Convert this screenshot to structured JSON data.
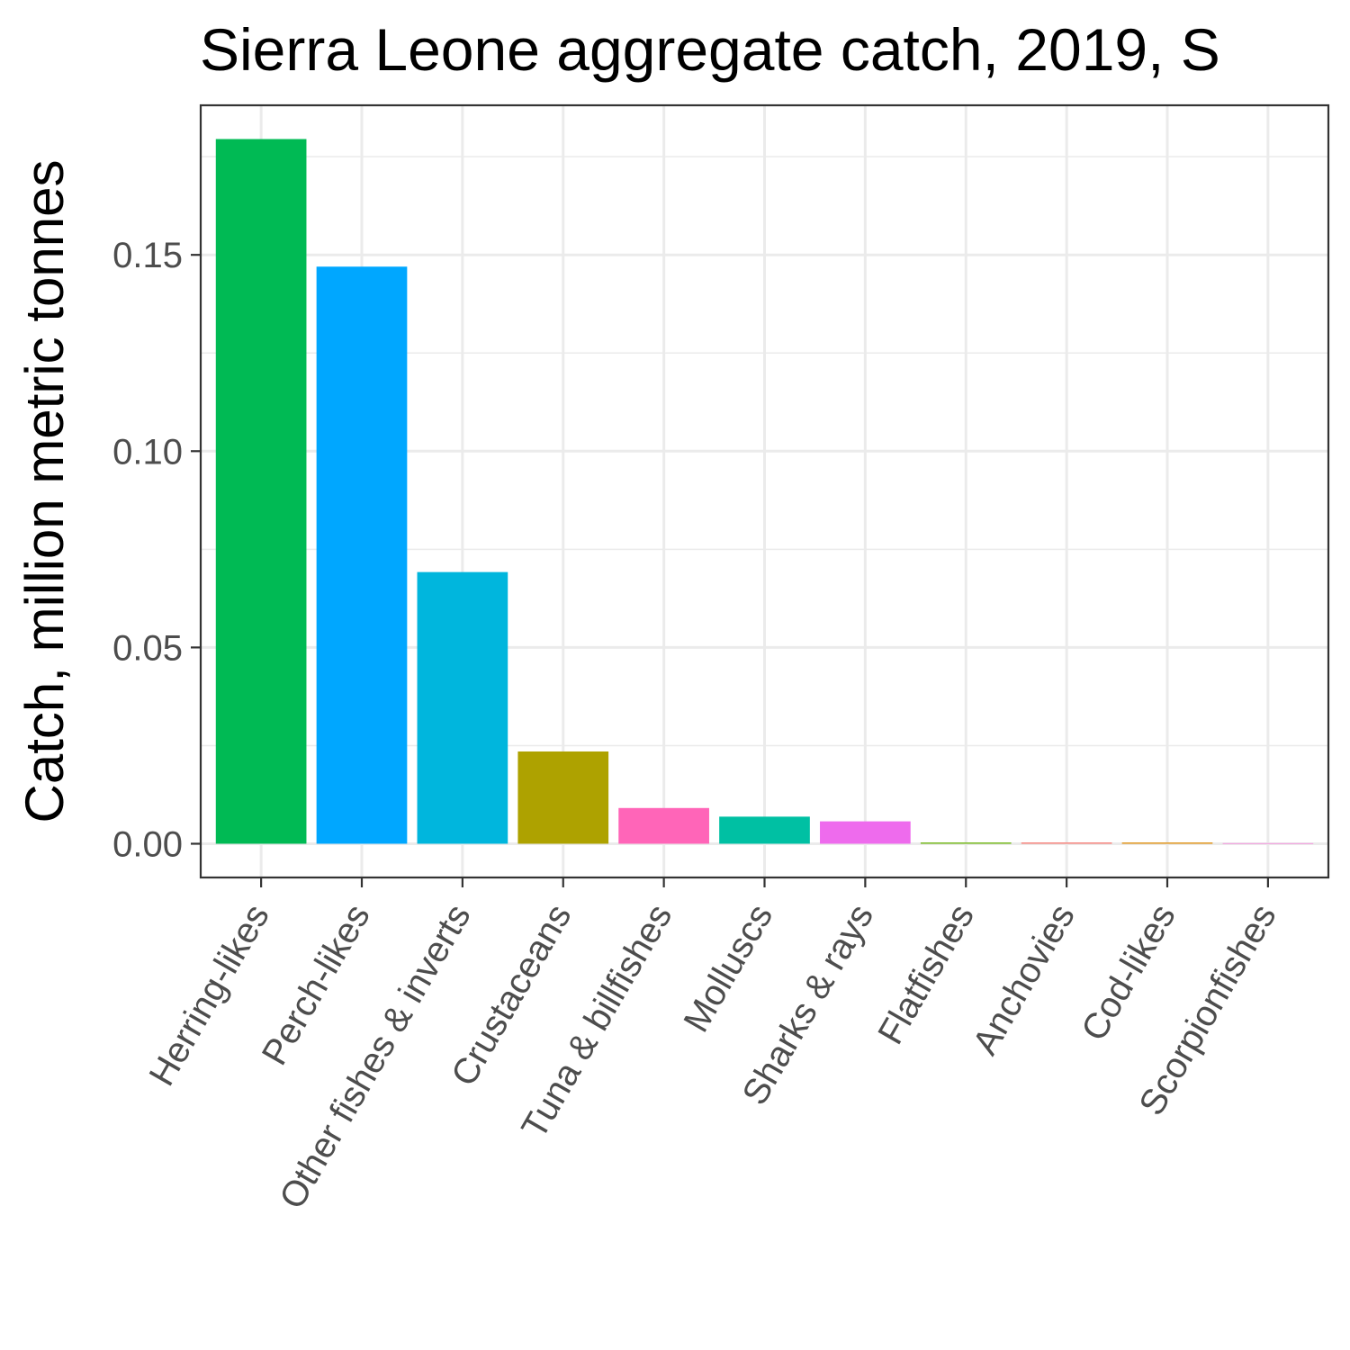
{
  "chart_data": {
    "type": "bar",
    "title": "Sierra Leone aggregate catch, 2019, S",
    "xlabel": "",
    "ylabel": "Catch, million metric tonnes",
    "categories": [
      "Herring-likes",
      "Perch-likes",
      "Other fishes & inverts",
      "Crustaceans",
      "Tuna & billfishes",
      "Molluscs",
      "Sharks & rays",
      "Flatfishes",
      "Anchovies",
      "Cod-likes",
      "Scorpionfishes"
    ],
    "values": [
      0.1795,
      0.147,
      0.0692,
      0.0235,
      0.0091,
      0.0069,
      0.0057,
      0.0003,
      0.0003,
      0.0003,
      5e-05
    ],
    "colors": [
      "#00BA54",
      "#00A7FF",
      "#00B6DD",
      "#AEA200",
      "#FF65B8",
      "#00C0A3",
      "#EE6BED",
      "#64B200",
      "#F8766D",
      "#E18A00",
      "#FB61D7"
    ],
    "yticks": [
      0.0,
      0.05,
      0.1,
      0.15
    ],
    "ytick_labels": [
      "0.00",
      "0.05",
      "0.10",
      "0.15"
    ],
    "ylim": [
      -0.0086,
      0.1881
    ],
    "grid": true,
    "legend": "none"
  }
}
